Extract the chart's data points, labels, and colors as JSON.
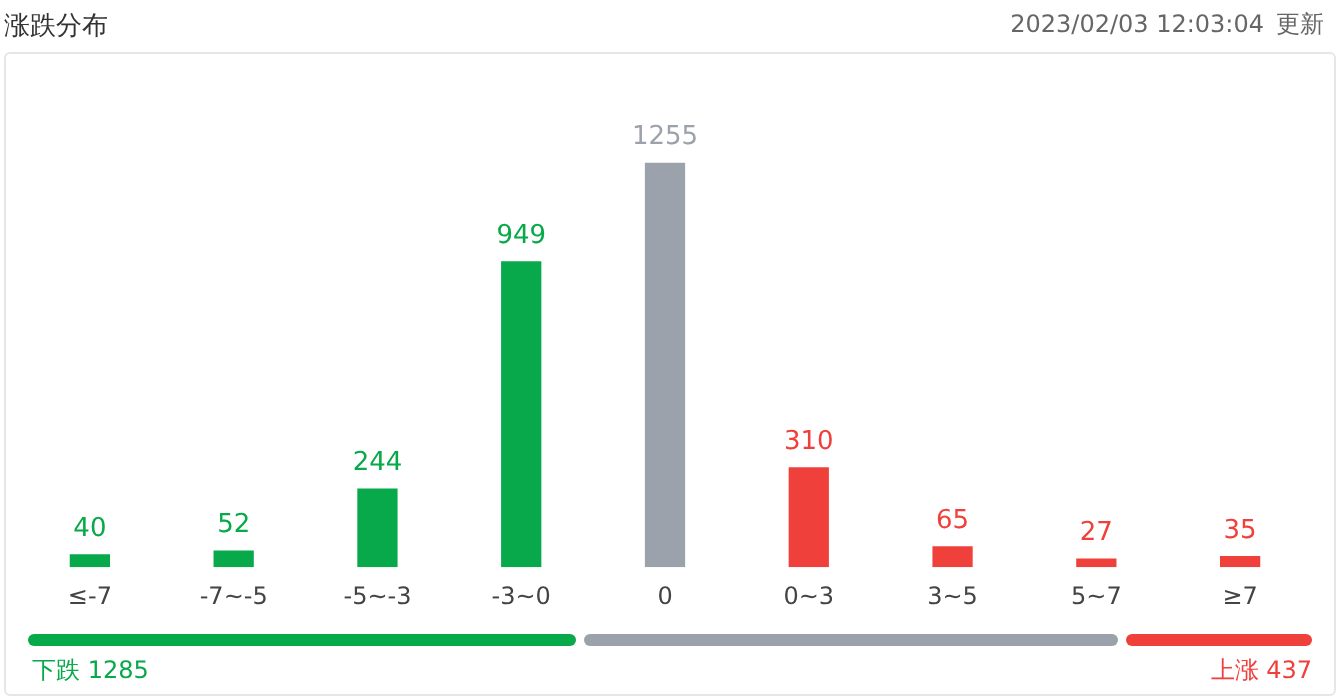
{
  "chart_data": {
    "type": "bar",
    "title": "涨跌分布",
    "categories": [
      "≤-7",
      "-7~-5",
      "-5~-3",
      "-3~0",
      "0",
      "0~3",
      "3~5",
      "5~7",
      "≥7"
    ],
    "values": [
      40,
      52,
      244,
      949,
      1255,
      310,
      65,
      27,
      35
    ],
    "colors": [
      "#07a94a",
      "#07a94a",
      "#07a94a",
      "#07a94a",
      "#9ba2ab",
      "#f0403c",
      "#f0403c",
      "#f0403c",
      "#f0403c"
    ],
    "data_labels": true,
    "grid": false,
    "legend": false,
    "tick_labels": "x",
    "annotations": [
      "2023/02/03 12:03:04",
      "更新",
      "下跌 1285",
      "上涨 437"
    ]
  }
}
